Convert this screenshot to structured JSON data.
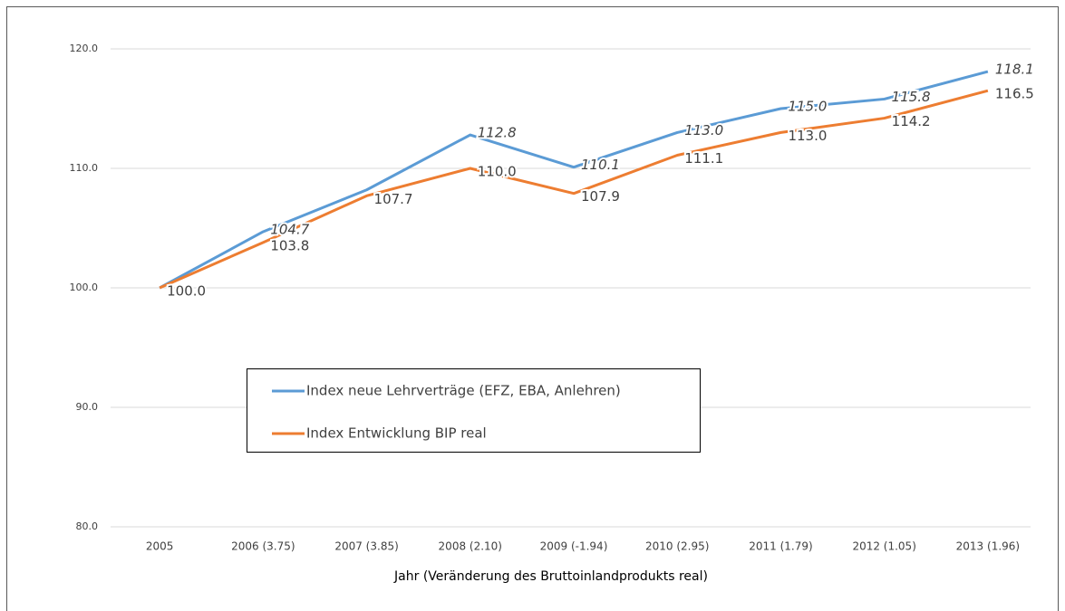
{
  "chart_data": {
    "type": "line",
    "xlabel": "Jahr (Veränderung des Bruttoinlandprodukts real)",
    "categories": [
      "2005",
      "2006 (3.75)",
      "2007 (3.85)",
      "2008 (2.10)",
      "2009 (-1.94)",
      "2010 (2.95)",
      "2011 (1.79)",
      "2012 (1.05)",
      "2013 (1.96)"
    ],
    "series": [
      {
        "name": "Index neue Lehrverträge (EFZ, EBA, Anlehren)",
        "color": "#5b9bd5",
        "values": [
          100.0,
          104.7,
          108.2,
          112.8,
          110.1,
          113.0,
          115.0,
          115.8,
          118.1
        ],
        "value_labels": [
          null,
          "104.7",
          null,
          "112.8",
          "110.1",
          "113.0",
          "115.0",
          "115.8",
          "118.1"
        ]
      },
      {
        "name": "Index Entwicklung BIP real",
        "color": "#ed7d31",
        "values": [
          100.0,
          103.8,
          107.7,
          110.0,
          107.9,
          111.1,
          113.0,
          114.2,
          116.5
        ],
        "value_labels": [
          "100.0",
          "103.8",
          "107.7",
          "110.0",
          "107.9",
          "111.1",
          "113.0",
          "114.2",
          "116.5"
        ]
      }
    ],
    "ylim": [
      80,
      120
    ],
    "yticks": [
      {
        "value": 80,
        "label": "80.0"
      },
      {
        "value": 90,
        "label": "90.0"
      },
      {
        "value": 100,
        "label": "100.0"
      },
      {
        "value": 110,
        "label": "110.0"
      },
      {
        "value": 120,
        "label": "120.0"
      }
    ],
    "grid": true,
    "legend": "inside"
  }
}
